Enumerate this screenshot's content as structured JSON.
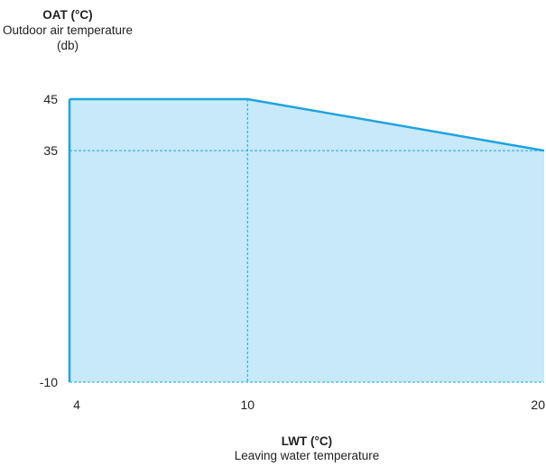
{
  "chart_data": {
    "type": "area",
    "title": "",
    "ylabel": "OAT (°C)",
    "ylabel_sub": "Outdoor air temperature (db)",
    "xlabel": "LWT (°C)",
    "xlabel_sub": "Leaving water temperature",
    "x_ticks": [
      4,
      10,
      20
    ],
    "y_ticks": [
      -10,
      35,
      45
    ],
    "x_tick_labels": [
      "4",
      "10",
      "20"
    ],
    "y_tick_labels": [
      "-10",
      "35",
      "45"
    ],
    "xlim": [
      4,
      20
    ],
    "ylim": [
      -10,
      45
    ],
    "envelope": [
      {
        "x": 4,
        "y": -10
      },
      {
        "x": 4,
        "y": 45
      },
      {
        "x": 10,
        "y": 45
      },
      {
        "x": 20,
        "y": 35
      },
      {
        "x": 20,
        "y": -10
      }
    ],
    "reference_lines": [
      {
        "axis": "x",
        "value": 10
      },
      {
        "axis": "y",
        "value": 35
      }
    ],
    "grid": false,
    "legend": "none",
    "colors": {
      "fill": "#c7e9f9",
      "line": "#1fa3df",
      "text": "#222222"
    }
  }
}
